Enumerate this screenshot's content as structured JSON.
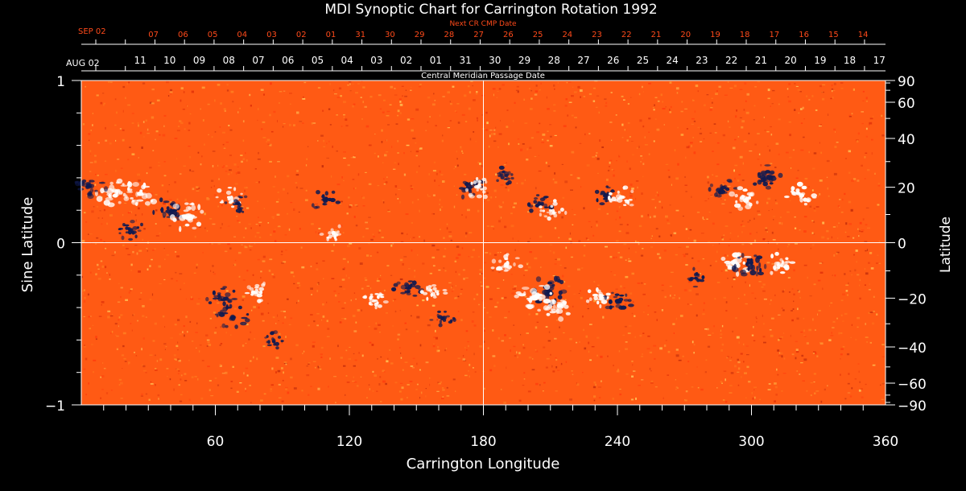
{
  "chart_data": {
    "type": "heatmap",
    "title": "MDI Synoptic Chart for Carrington Rotation 1992",
    "xlabel": "Carrington Longitude",
    "ylabel_left": "Sine Latitude",
    "ylabel_right": "Latitude",
    "xlim": [
      0,
      360
    ],
    "ylim": [
      -1,
      1
    ],
    "x_ticks": [
      60,
      120,
      180,
      240,
      300,
      360
    ],
    "y_ticks_left": [
      "1",
      "0",
      "−1"
    ],
    "y_ticks_right": [
      "90",
      "60",
      "40",
      "20",
      "0",
      "−20",
      "−40",
      "−60",
      "−90"
    ],
    "y_ticks_right_values": [
      90,
      60,
      40,
      20,
      0,
      -20,
      -40,
      -60,
      -90
    ],
    "top_axis_label": "Central Meridian Passage Date",
    "top_axis_start_month": "AUG 02",
    "top_axis_dates": [
      "11",
      "10",
      "09",
      "08",
      "07",
      "06",
      "05",
      "04",
      "03",
      "02",
      "01",
      "31",
      "30",
      "29",
      "28",
      "27",
      "26",
      "25",
      "24",
      "23",
      "22",
      "21",
      "20",
      "19",
      "18",
      "17"
    ],
    "next_axis_label": "Next CR CMP Date",
    "next_axis_start_month": "SEP 02",
    "next_axis_dates": [
      "07",
      "06",
      "05",
      "04",
      "03",
      "02",
      "01",
      "31",
      "30",
      "29",
      "28",
      "27",
      "26",
      "25",
      "24",
      "23",
      "22",
      "21",
      "20",
      "19",
      "18",
      "17",
      "16",
      "15",
      "14"
    ],
    "colors": {
      "background": "#ff5a14",
      "positive_polarity": "#ffffff",
      "negative_polarity": "#101a50",
      "next_axis": "#ff4a1a",
      "axis": "#ffffff"
    },
    "active_regions": [
      {
        "lon": 15,
        "sinlat": 0.32,
        "polarity": "positive",
        "strength": 1.0
      },
      {
        "lon": 4,
        "sinlat": 0.35,
        "polarity": "negative",
        "strength": 0.8
      },
      {
        "lon": 27,
        "sinlat": 0.3,
        "polarity": "positive",
        "strength": 0.9
      },
      {
        "lon": 40,
        "sinlat": 0.2,
        "polarity": "negative",
        "strength": 1.0
      },
      {
        "lon": 48,
        "sinlat": 0.16,
        "polarity": "positive",
        "strength": 1.0
      },
      {
        "lon": 22,
        "sinlat": 0.08,
        "polarity": "negative",
        "strength": 0.6
      },
      {
        "lon": 66,
        "sinlat": 0.28,
        "polarity": "positive",
        "strength": 0.6
      },
      {
        "lon": 70,
        "sinlat": 0.24,
        "polarity": "negative",
        "strength": 0.5
      },
      {
        "lon": 109,
        "sinlat": 0.26,
        "polarity": "negative",
        "strength": 0.6
      },
      {
        "lon": 113,
        "sinlat": 0.06,
        "polarity": "positive",
        "strength": 0.5
      },
      {
        "lon": 174,
        "sinlat": 0.34,
        "polarity": "negative",
        "strength": 0.7
      },
      {
        "lon": 178,
        "sinlat": 0.34,
        "polarity": "positive",
        "strength": 0.6
      },
      {
        "lon": 189,
        "sinlat": 0.42,
        "polarity": "negative",
        "strength": 0.6
      },
      {
        "lon": 205,
        "sinlat": 0.24,
        "polarity": "negative",
        "strength": 0.6
      },
      {
        "lon": 211,
        "sinlat": 0.2,
        "polarity": "positive",
        "strength": 0.6
      },
      {
        "lon": 235,
        "sinlat": 0.29,
        "polarity": "negative",
        "strength": 0.6
      },
      {
        "lon": 242,
        "sinlat": 0.28,
        "polarity": "positive",
        "strength": 0.7
      },
      {
        "lon": 287,
        "sinlat": 0.32,
        "polarity": "negative",
        "strength": 0.7
      },
      {
        "lon": 297,
        "sinlat": 0.27,
        "polarity": "positive",
        "strength": 0.8
      },
      {
        "lon": 308,
        "sinlat": 0.4,
        "polarity": "negative",
        "strength": 0.9
      },
      {
        "lon": 322,
        "sinlat": 0.3,
        "polarity": "positive",
        "strength": 0.7
      },
      {
        "lon": 209,
        "sinlat": -0.3,
        "polarity": "negative",
        "strength": 1.0
      },
      {
        "lon": 203,
        "sinlat": -0.34,
        "polarity": "positive",
        "strength": 1.0
      },
      {
        "lon": 190,
        "sinlat": -0.14,
        "polarity": "positive",
        "strength": 0.7
      },
      {
        "lon": 213,
        "sinlat": -0.4,
        "polarity": "positive",
        "strength": 0.8
      },
      {
        "lon": 233,
        "sinlat": -0.34,
        "polarity": "positive",
        "strength": 0.7
      },
      {
        "lon": 240,
        "sinlat": -0.36,
        "polarity": "negative",
        "strength": 0.7
      },
      {
        "lon": 292,
        "sinlat": -0.12,
        "polarity": "positive",
        "strength": 1.0
      },
      {
        "lon": 299,
        "sinlat": -0.12,
        "polarity": "negative",
        "strength": 1.0
      },
      {
        "lon": 313,
        "sinlat": -0.13,
        "polarity": "positive",
        "strength": 0.7
      },
      {
        "lon": 275,
        "sinlat": -0.22,
        "polarity": "negative",
        "strength": 0.5
      },
      {
        "lon": 63,
        "sinlat": -0.34,
        "polarity": "negative",
        "strength": 0.7
      },
      {
        "lon": 68,
        "sinlat": -0.46,
        "polarity": "negative",
        "strength": 0.8
      },
      {
        "lon": 78,
        "sinlat": -0.3,
        "polarity": "positive",
        "strength": 0.6
      },
      {
        "lon": 86,
        "sinlat": -0.6,
        "polarity": "negative",
        "strength": 0.5
      },
      {
        "lon": 131,
        "sinlat": -0.36,
        "polarity": "positive",
        "strength": 0.6
      },
      {
        "lon": 146,
        "sinlat": -0.28,
        "polarity": "negative",
        "strength": 0.7
      },
      {
        "lon": 158,
        "sinlat": -0.3,
        "polarity": "positive",
        "strength": 0.5
      },
      {
        "lon": 162,
        "sinlat": -0.46,
        "polarity": "negative",
        "strength": 0.5
      }
    ]
  }
}
